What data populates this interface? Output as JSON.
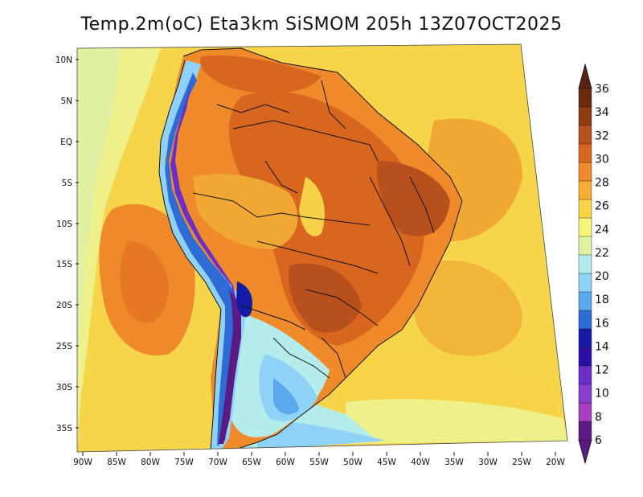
{
  "title": "Temp.2m(oC) Eta3km SiSMOM 205h 13Z07OCT2025",
  "map": {
    "lat_labels": [
      "10N",
      "5N",
      "EQ",
      "5S",
      "10S",
      "15S",
      "20S",
      "25S",
      "30S",
      "35S"
    ],
    "lon_labels": [
      "90W",
      "85W",
      "80W",
      "75W",
      "70W",
      "65W",
      "60W",
      "55W",
      "50W",
      "45W",
      "40W",
      "35W",
      "30W",
      "25W",
      "20W"
    ]
  },
  "colorbar": {
    "unit": "oC",
    "labels": [
      "36",
      "34",
      "32",
      "30",
      "28",
      "26",
      "24",
      "22",
      "20",
      "18",
      "16",
      "14",
      "12",
      "10",
      "8",
      "6"
    ],
    "colors": [
      "#6b2a12",
      "#8e3c14",
      "#b8501e",
      "#d9661f",
      "#ef8a2a",
      "#f6ae36",
      "#f7d346",
      "#f6f27a",
      "#dff0a0",
      "#b3ecea",
      "#8fd2f7",
      "#5aa9ec",
      "#2e6bd6",
      "#151ba6",
      "#2b0fa6",
      "#6a2fc8",
      "#8a3fd0",
      "#a93fc3",
      "#5a1b85"
    ]
  }
}
